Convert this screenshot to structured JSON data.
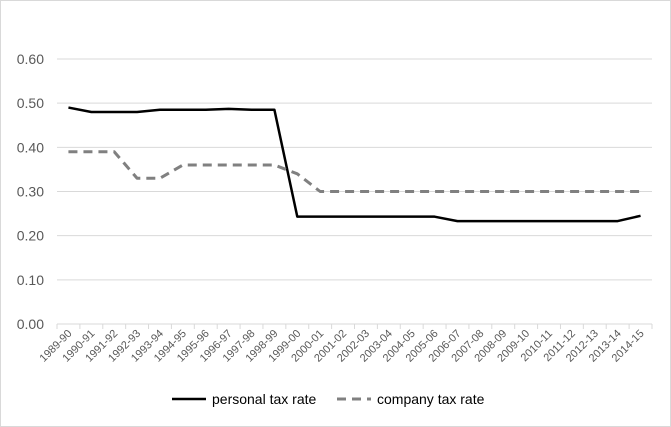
{
  "chart_data": {
    "type": "line",
    "title": "",
    "xlabel": "",
    "ylabel": "",
    "ylim": [
      0,
      0.6
    ],
    "yticks": [
      "0.00",
      "0.10",
      "0.20",
      "0.30",
      "0.40",
      "0.50",
      "0.60"
    ],
    "grid": true,
    "legend_position": "bottom",
    "categories": [
      "1989-90",
      "1990-91",
      "1991-92",
      "1992-93",
      "1993-94",
      "1994-95",
      "1995-96",
      "1996-97",
      "1997-98",
      "1998-99",
      "1999-00",
      "2000-01",
      "2001-02",
      "2002-03",
      "2003-04",
      "2004-05",
      "2005-06",
      "2006-07",
      "2007-08",
      "2008-09",
      "2009-10",
      "2010-11",
      "2011-12",
      "2012-13",
      "2013-14",
      "2014-15"
    ],
    "series": [
      {
        "name": "personal tax rate",
        "color": "#000000",
        "dash": "solid",
        "values": [
          0.49,
          0.48,
          0.48,
          0.48,
          0.485,
          0.485,
          0.485,
          0.487,
          0.485,
          0.485,
          0.243,
          0.243,
          0.243,
          0.243,
          0.243,
          0.243,
          0.243,
          0.233,
          0.233,
          0.233,
          0.233,
          0.233,
          0.233,
          0.233,
          0.233,
          0.245
        ]
      },
      {
        "name": "company tax rate",
        "color": "#808080",
        "dash": "dashed",
        "values": [
          0.39,
          0.39,
          0.39,
          0.33,
          0.33,
          0.36,
          0.36,
          0.36,
          0.36,
          0.36,
          0.34,
          0.3,
          0.3,
          0.3,
          0.3,
          0.3,
          0.3,
          0.3,
          0.3,
          0.3,
          0.3,
          0.3,
          0.3,
          0.3,
          0.3,
          0.3
        ]
      }
    ]
  }
}
